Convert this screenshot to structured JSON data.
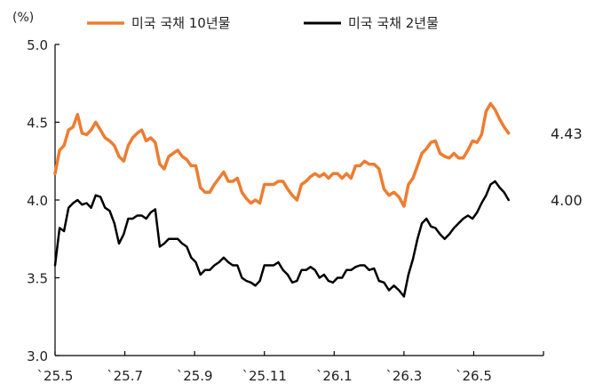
{
  "chart_data": {
    "type": "line",
    "y_unit": "(%)",
    "ylim": [
      3.0,
      5.0
    ],
    "y_ticks": [
      "5.0",
      "4.5",
      "4.0",
      "3.5",
      "3.0"
    ],
    "x_ticks": [
      "`25.5",
      "`25.7",
      "`25.9",
      "`25.11",
      "`26.1",
      "`26.3",
      "`26.5"
    ],
    "x_range_months": [
      "2025-05",
      "2026-06"
    ],
    "grid": false,
    "legend_position": "top",
    "series": [
      {
        "name": "미국 국채 10년물",
        "color": "#ED7D31",
        "end_label": "4.43",
        "points": [
          [
            "2025-05-01",
            4.17
          ],
          [
            "2025-05-05",
            4.32
          ],
          [
            "2025-05-09",
            4.35
          ],
          [
            "2025-05-13",
            4.45
          ],
          [
            "2025-05-17",
            4.47
          ],
          [
            "2025-05-21",
            4.55
          ],
          [
            "2025-05-25",
            4.43
          ],
          [
            "2025-05-29",
            4.42
          ],
          [
            "2025-06-02",
            4.45
          ],
          [
            "2025-06-06",
            4.5
          ],
          [
            "2025-06-10",
            4.45
          ],
          [
            "2025-06-14",
            4.4
          ],
          [
            "2025-06-18",
            4.38
          ],
          [
            "2025-06-22",
            4.35
          ],
          [
            "2025-06-26",
            4.28
          ],
          [
            "2025-06-30",
            4.25
          ],
          [
            "2025-07-04",
            4.35
          ],
          [
            "2025-07-08",
            4.4
          ],
          [
            "2025-07-12",
            4.43
          ],
          [
            "2025-07-16",
            4.45
          ],
          [
            "2025-07-20",
            4.38
          ],
          [
            "2025-07-24",
            4.4
          ],
          [
            "2025-07-28",
            4.37
          ],
          [
            "2025-08-01",
            4.23
          ],
          [
            "2025-08-05",
            4.2
          ],
          [
            "2025-08-09",
            4.28
          ],
          [
            "2025-08-13",
            4.3
          ],
          [
            "2025-08-17",
            4.32
          ],
          [
            "2025-08-21",
            4.28
          ],
          [
            "2025-08-25",
            4.26
          ],
          [
            "2025-08-29",
            4.22
          ],
          [
            "2025-09-02",
            4.22
          ],
          [
            "2025-09-06",
            4.08
          ],
          [
            "2025-09-10",
            4.05
          ],
          [
            "2025-09-14",
            4.05
          ],
          [
            "2025-09-18",
            4.1
          ],
          [
            "2025-09-22",
            4.14
          ],
          [
            "2025-09-26",
            4.18
          ],
          [
            "2025-09-30",
            4.12
          ],
          [
            "2025-10-04",
            4.12
          ],
          [
            "2025-10-08",
            4.14
          ],
          [
            "2025-10-12",
            4.05
          ],
          [
            "2025-10-16",
            4.01
          ],
          [
            "2025-10-20",
            3.98
          ],
          [
            "2025-10-24",
            4.0
          ],
          [
            "2025-10-28",
            3.98
          ],
          [
            "2025-11-01",
            4.1
          ],
          [
            "2025-11-05",
            4.1
          ],
          [
            "2025-11-09",
            4.1
          ],
          [
            "2025-11-13",
            4.12
          ],
          [
            "2025-11-17",
            4.12
          ],
          [
            "2025-11-21",
            4.07
          ],
          [
            "2025-11-25",
            4.03
          ],
          [
            "2025-11-29",
            4.0
          ],
          [
            "2025-12-03",
            4.1
          ],
          [
            "2025-12-07",
            4.12
          ],
          [
            "2025-12-11",
            4.15
          ],
          [
            "2025-12-15",
            4.17
          ],
          [
            "2025-12-19",
            4.15
          ],
          [
            "2025-12-23",
            4.17
          ],
          [
            "2025-12-27",
            4.14
          ],
          [
            "2025-12-31",
            4.17
          ],
          [
            "2026-01-04",
            4.17
          ],
          [
            "2026-01-08",
            4.14
          ],
          [
            "2026-01-12",
            4.17
          ],
          [
            "2026-01-16",
            4.14
          ],
          [
            "2026-01-20",
            4.22
          ],
          [
            "2026-01-24",
            4.22
          ],
          [
            "2026-01-28",
            4.25
          ],
          [
            "2026-02-01",
            4.23
          ],
          [
            "2026-02-05",
            4.23
          ],
          [
            "2026-02-09",
            4.2
          ],
          [
            "2026-02-13",
            4.07
          ],
          [
            "2026-02-17",
            4.03
          ],
          [
            "2026-02-21",
            4.05
          ],
          [
            "2026-02-25",
            4.02
          ],
          [
            "2026-03-01",
            3.96
          ],
          [
            "2026-03-05",
            4.1
          ],
          [
            "2026-03-09",
            4.14
          ],
          [
            "2026-03-13",
            4.22
          ],
          [
            "2026-03-17",
            4.3
          ],
          [
            "2026-03-21",
            4.33
          ],
          [
            "2026-03-25",
            4.37
          ],
          [
            "2026-03-29",
            4.38
          ],
          [
            "2026-04-02",
            4.3
          ],
          [
            "2026-04-06",
            4.28
          ],
          [
            "2026-04-10",
            4.27
          ],
          [
            "2026-04-14",
            4.3
          ],
          [
            "2026-04-18",
            4.27
          ],
          [
            "2026-04-22",
            4.27
          ],
          [
            "2026-04-26",
            4.32
          ],
          [
            "2026-04-30",
            4.38
          ],
          [
            "2026-05-04",
            4.37
          ],
          [
            "2026-05-08",
            4.42
          ],
          [
            "2026-05-12",
            4.57
          ],
          [
            "2026-05-16",
            4.62
          ],
          [
            "2026-05-20",
            4.58
          ],
          [
            "2026-05-24",
            4.52
          ],
          [
            "2026-05-28",
            4.47
          ],
          [
            "2026-06-01",
            4.43
          ]
        ]
      },
      {
        "name": "미국 국채 2년물",
        "color": "#000000",
        "end_label": "4.00",
        "points": [
          [
            "2025-05-01",
            3.58
          ],
          [
            "2025-05-05",
            3.82
          ],
          [
            "2025-05-09",
            3.8
          ],
          [
            "2025-05-13",
            3.95
          ],
          [
            "2025-05-17",
            3.98
          ],
          [
            "2025-05-21",
            4.0
          ],
          [
            "2025-05-25",
            3.97
          ],
          [
            "2025-05-29",
            3.98
          ],
          [
            "2025-06-02",
            3.95
          ],
          [
            "2025-06-06",
            4.03
          ],
          [
            "2025-06-10",
            4.02
          ],
          [
            "2025-06-14",
            3.95
          ],
          [
            "2025-06-18",
            3.93
          ],
          [
            "2025-06-22",
            3.85
          ],
          [
            "2025-06-26",
            3.72
          ],
          [
            "2025-06-30",
            3.78
          ],
          [
            "2025-07-04",
            3.88
          ],
          [
            "2025-07-08",
            3.88
          ],
          [
            "2025-07-12",
            3.9
          ],
          [
            "2025-07-16",
            3.9
          ],
          [
            "2025-07-20",
            3.88
          ],
          [
            "2025-07-24",
            3.92
          ],
          [
            "2025-07-28",
            3.94
          ],
          [
            "2025-08-01",
            3.7
          ],
          [
            "2025-08-05",
            3.72
          ],
          [
            "2025-08-09",
            3.75
          ],
          [
            "2025-08-13",
            3.75
          ],
          [
            "2025-08-17",
            3.75
          ],
          [
            "2025-08-21",
            3.72
          ],
          [
            "2025-08-25",
            3.7
          ],
          [
            "2025-08-29",
            3.63
          ],
          [
            "2025-09-02",
            3.6
          ],
          [
            "2025-09-06",
            3.52
          ],
          [
            "2025-09-10",
            3.55
          ],
          [
            "2025-09-14",
            3.55
          ],
          [
            "2025-09-18",
            3.58
          ],
          [
            "2025-09-22",
            3.6
          ],
          [
            "2025-09-26",
            3.63
          ],
          [
            "2025-09-30",
            3.6
          ],
          [
            "2025-10-04",
            3.58
          ],
          [
            "2025-10-08",
            3.58
          ],
          [
            "2025-10-12",
            3.5
          ],
          [
            "2025-10-16",
            3.48
          ],
          [
            "2025-10-20",
            3.47
          ],
          [
            "2025-10-24",
            3.45
          ],
          [
            "2025-10-28",
            3.48
          ],
          [
            "2025-11-01",
            3.58
          ],
          [
            "2025-11-05",
            3.58
          ],
          [
            "2025-11-09",
            3.58
          ],
          [
            "2025-11-13",
            3.6
          ],
          [
            "2025-11-17",
            3.55
          ],
          [
            "2025-11-21",
            3.52
          ],
          [
            "2025-11-25",
            3.47
          ],
          [
            "2025-11-29",
            3.48
          ],
          [
            "2025-12-03",
            3.55
          ],
          [
            "2025-12-07",
            3.55
          ],
          [
            "2025-12-11",
            3.57
          ],
          [
            "2025-12-15",
            3.55
          ],
          [
            "2025-12-19",
            3.5
          ],
          [
            "2025-12-23",
            3.52
          ],
          [
            "2025-12-27",
            3.48
          ],
          [
            "2025-12-31",
            3.47
          ],
          [
            "2026-01-04",
            3.5
          ],
          [
            "2026-01-08",
            3.5
          ],
          [
            "2026-01-12",
            3.55
          ],
          [
            "2026-01-16",
            3.55
          ],
          [
            "2026-01-20",
            3.57
          ],
          [
            "2026-01-24",
            3.58
          ],
          [
            "2026-01-28",
            3.58
          ],
          [
            "2026-02-01",
            3.55
          ],
          [
            "2026-02-05",
            3.56
          ],
          [
            "2026-02-09",
            3.48
          ],
          [
            "2026-02-13",
            3.47
          ],
          [
            "2026-02-17",
            3.42
          ],
          [
            "2026-02-21",
            3.45
          ],
          [
            "2026-02-25",
            3.42
          ],
          [
            "2026-03-01",
            3.38
          ],
          [
            "2026-03-05",
            3.52
          ],
          [
            "2026-03-09",
            3.62
          ],
          [
            "2026-03-13",
            3.75
          ],
          [
            "2026-03-17",
            3.85
          ],
          [
            "2026-03-21",
            3.88
          ],
          [
            "2026-03-25",
            3.83
          ],
          [
            "2026-03-29",
            3.82
          ],
          [
            "2026-04-02",
            3.78
          ],
          [
            "2026-04-06",
            3.75
          ],
          [
            "2026-04-10",
            3.78
          ],
          [
            "2026-04-14",
            3.82
          ],
          [
            "2026-04-18",
            3.85
          ],
          [
            "2026-04-22",
            3.88
          ],
          [
            "2026-04-26",
            3.9
          ],
          [
            "2026-04-30",
            3.88
          ],
          [
            "2026-05-04",
            3.92
          ],
          [
            "2026-05-08",
            3.98
          ],
          [
            "2026-05-12",
            4.03
          ],
          [
            "2026-05-16",
            4.1
          ],
          [
            "2026-05-20",
            4.12
          ],
          [
            "2026-05-24",
            4.08
          ],
          [
            "2026-05-28",
            4.05
          ],
          [
            "2026-06-01",
            4.0
          ]
        ]
      }
    ]
  }
}
